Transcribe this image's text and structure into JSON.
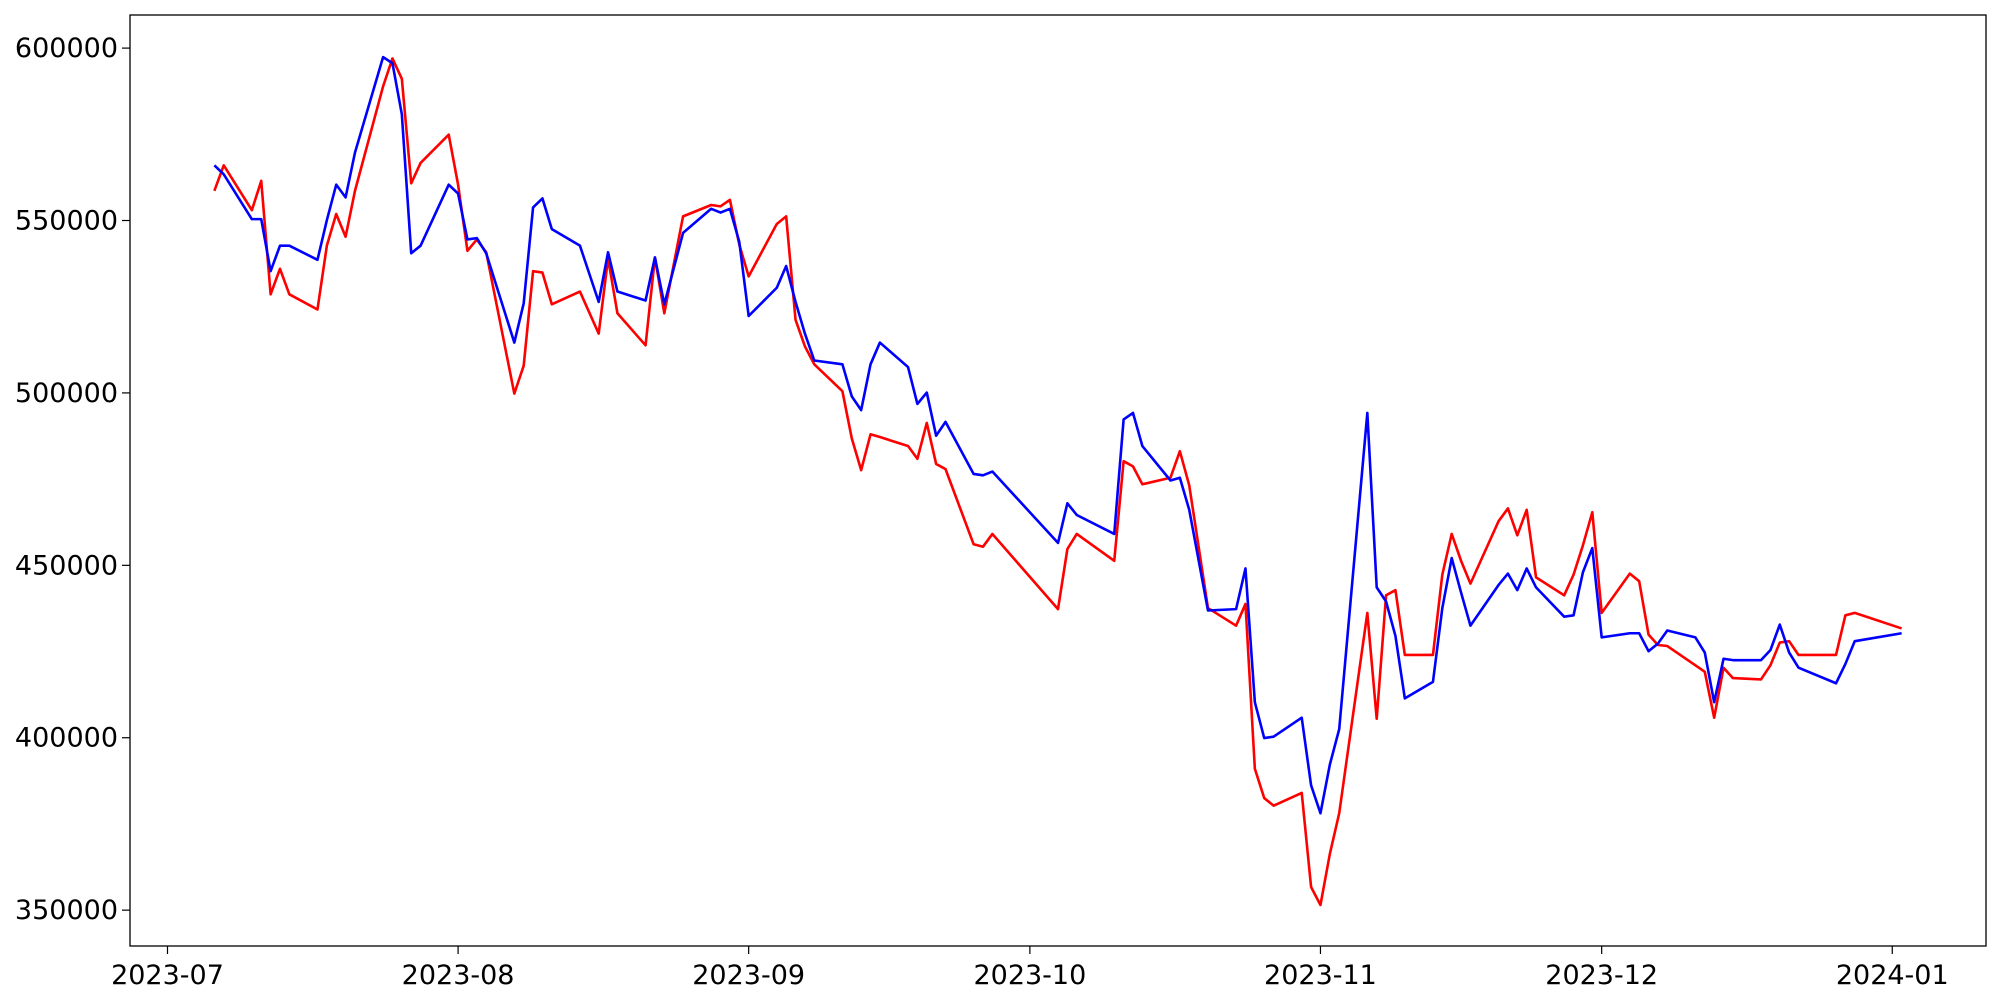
{
  "chart_data": {
    "type": "line",
    "x": [
      "2023-07-06",
      "2023-07-07",
      "2023-07-10",
      "2023-07-11",
      "2023-07-12",
      "2023-07-13",
      "2023-07-14",
      "2023-07-17",
      "2023-07-18",
      "2023-07-19",
      "2023-07-20",
      "2023-07-21",
      "2023-07-24",
      "2023-07-25",
      "2023-07-26",
      "2023-07-27",
      "2023-07-28",
      "2023-07-31",
      "2023-08-01",
      "2023-08-02",
      "2023-08-03",
      "2023-08-04",
      "2023-08-07",
      "2023-08-08",
      "2023-08-09",
      "2023-08-10",
      "2023-08-11",
      "2023-08-14",
      "2023-08-16",
      "2023-08-17",
      "2023-08-18",
      "2023-08-21",
      "2023-08-22",
      "2023-08-23",
      "2023-08-25",
      "2023-08-28",
      "2023-08-29",
      "2023-08-30",
      "2023-08-31",
      "2023-09-01",
      "2023-09-04",
      "2023-09-05",
      "2023-09-06",
      "2023-09-07",
      "2023-09-08",
      "2023-09-11",
      "2023-09-12",
      "2023-09-13",
      "2023-09-14",
      "2023-09-15",
      "2023-09-18",
      "2023-09-19",
      "2023-09-20",
      "2023-09-21",
      "2023-09-22",
      "2023-09-25",
      "2023-09-26",
      "2023-09-27",
      "2023-10-04",
      "2023-10-05",
      "2023-10-06",
      "2023-10-10",
      "2023-10-11",
      "2023-10-12",
      "2023-10-13",
      "2023-10-16",
      "2023-10-17",
      "2023-10-18",
      "2023-10-20",
      "2023-10-23",
      "2023-10-24",
      "2023-10-25",
      "2023-10-26",
      "2023-10-27",
      "2023-10-30",
      "2023-10-31",
      "2023-11-01",
      "2023-11-02",
      "2023-11-03",
      "2023-11-06",
      "2023-11-07",
      "2023-11-08",
      "2023-11-09",
      "2023-11-10",
      "2023-11-13",
      "2023-11-14",
      "2023-11-15",
      "2023-11-16",
      "2023-11-17",
      "2023-11-20",
      "2023-11-21",
      "2023-11-22",
      "2023-11-23",
      "2023-11-24",
      "2023-11-27",
      "2023-11-28",
      "2023-11-29",
      "2023-11-30",
      "2023-12-01",
      "2023-12-04",
      "2023-12-05",
      "2023-12-06",
      "2023-12-07",
      "2023-12-08",
      "2023-12-11",
      "2023-12-12",
      "2023-12-13",
      "2023-12-14",
      "2023-12-15",
      "2023-12-18",
      "2023-12-19",
      "2023-12-20",
      "2023-12-21",
      "2023-12-22",
      "2023-12-26",
      "2023-12-27",
      "2023-12-28",
      "2024-01-02"
    ],
    "series": [
      {
        "color": "#ff0000",
        "values": [
          558600,
          566000,
          553000,
          561500,
          528600,
          536000,
          528600,
          524200,
          542700,
          551900,
          545300,
          558600,
          588900,
          597000,
          591100,
          560800,
          566700,
          574900,
          560400,
          541200,
          544500,
          540800,
          499800,
          507900,
          535300,
          534900,
          525700,
          529400,
          517200,
          539000,
          523100,
          513800,
          539300,
          523100,
          551200,
          554500,
          554100,
          556000,
          543000,
          533800,
          549000,
          551200,
          521200,
          513500,
          508300,
          500500,
          486800,
          477600,
          488000,
          487200,
          484600,
          480900,
          491300,
          479400,
          477900,
          456100,
          455400,
          459100,
          437300,
          454700,
          459100,
          451300,
          480200,
          478700,
          473500,
          475400,
          483100,
          473200,
          437600,
          432500,
          438800,
          391000,
          382500,
          380300,
          384000,
          356700,
          351500,
          366300,
          378100,
          436200,
          405500,
          441300,
          442800,
          424000,
          424000,
          447300,
          459100,
          451300,
          444700,
          462800,
          466500,
          458700,
          466100,
          446500,
          441300,
          447300,
          455800,
          465400,
          436200,
          447600,
          445400,
          429900,
          426900,
          426600,
          421000,
          419100,
          405800,
          420300,
          417300,
          416900,
          421000,
          427600,
          428000,
          424000,
          424000,
          435500,
          436200,
          431700
        ]
      },
      {
        "color": "#0000ff",
        "values": [
          566000,
          563400,
          550400,
          550400,
          535300,
          542700,
          542700,
          538600,
          550100,
          560400,
          556700,
          569700,
          597400,
          595600,
          580800,
          540500,
          542700,
          560400,
          557800,
          544500,
          544900,
          540500,
          514600,
          526000,
          553800,
          556400,
          547500,
          542700,
          526400,
          540800,
          529400,
          526800,
          539300,
          525700,
          546400,
          553400,
          552300,
          553400,
          543800,
          522300,
          530500,
          536800,
          526400,
          517200,
          509400,
          508300,
          499000,
          495000,
          508300,
          514600,
          507500,
          496800,
          500100,
          487600,
          491600,
          476500,
          476100,
          477200,
          456500,
          468000,
          464600,
          459100,
          492300,
          494200,
          484600,
          474600,
          475400,
          466100,
          436900,
          437300,
          449100,
          410300,
          399900,
          400300,
          405800,
          386200,
          378100,
          392200,
          402500,
          494200,
          443600,
          439500,
          429500,
          411400,
          416200,
          437600,
          452100,
          442100,
          432500,
          444300,
          447600,
          442800,
          449100,
          443600,
          435100,
          435500,
          448000,
          455000,
          429100,
          430300,
          430300,
          425100,
          427300,
          431100,
          429100,
          424700,
          410300,
          422900,
          422500,
          422500,
          425400,
          432800,
          424700,
          420300,
          415800,
          421400,
          428000,
          430300
        ]
      }
    ],
    "xlim": [
      "2023-06-27",
      "2024-01-11"
    ],
    "xticks": [
      {
        "value": "2023-07-01",
        "label": "2023-07"
      },
      {
        "value": "2023-08-01",
        "label": "2023-08"
      },
      {
        "value": "2023-09-01",
        "label": "2023-09"
      },
      {
        "value": "2023-10-01",
        "label": "2023-10"
      },
      {
        "value": "2023-11-01",
        "label": "2023-11"
      },
      {
        "value": "2023-12-01",
        "label": "2023-12"
      },
      {
        "value": "2024-01-01",
        "label": "2024-01"
      }
    ],
    "ylim": [
      339600,
      609600
    ],
    "yticks": [
      350000,
      400000,
      450000,
      500000,
      550000,
      600000
    ],
    "grid": false
  }
}
